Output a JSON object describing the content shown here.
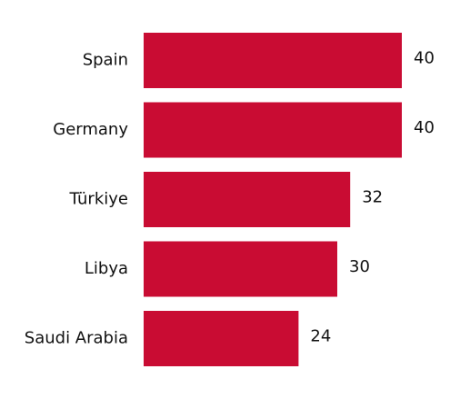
{
  "chart_data": {
    "type": "hbar",
    "categories": [
      "Spain",
      "Germany",
      "Türkiye",
      "Libya",
      "Saudi Arabia"
    ],
    "values": [
      40,
      40,
      32,
      30,
      24
    ],
    "color": "#c90c33"
  }
}
